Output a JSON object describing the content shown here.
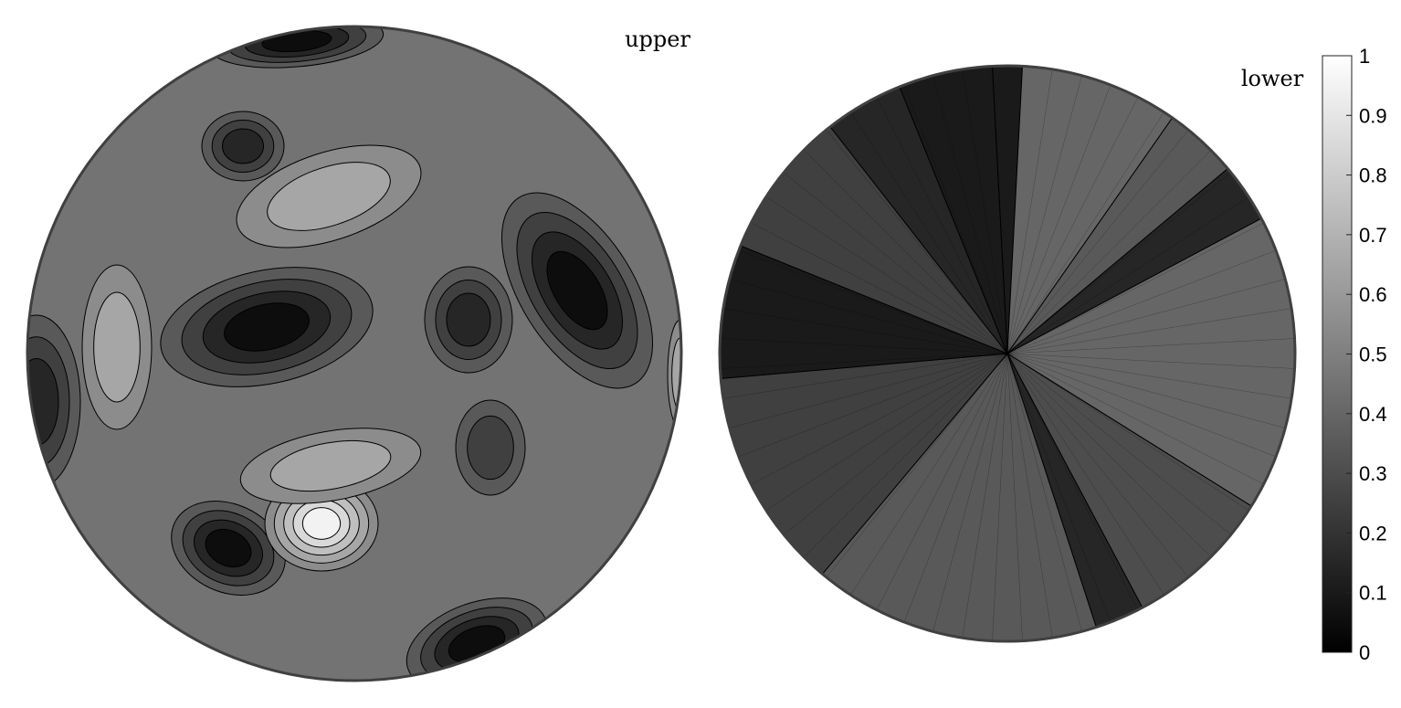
{
  "chart_data": [
    {
      "type": "heatmap",
      "projection": "stereographic (upper hemisphere)",
      "title": "upper",
      "colormap": "gray",
      "clim": [
        0,
        1
      ],
      "contour_levels": [
        0.1,
        0.2,
        0.3,
        0.4,
        0.5,
        0.6,
        0.7,
        0.8,
        0.9
      ],
      "background_value": 0.45,
      "features": [
        {
          "kind": "minimum",
          "value": 0.05
        },
        {
          "kind": "minimum",
          "value": 0.05
        },
        {
          "kind": "minimum",
          "value": 0.05
        },
        {
          "kind": "minimum",
          "value": 0.1
        },
        {
          "kind": "minimum",
          "value": 0.05
        },
        {
          "kind": "minimum",
          "value": 0.1
        },
        {
          "kind": "minimum",
          "value": 0.15
        },
        {
          "kind": "minimum",
          "value": 0.05
        },
        {
          "kind": "minimum",
          "value": 0.25
        },
        {
          "kind": "maximum",
          "value": 0.95
        },
        {
          "kind": "maximum",
          "value": 0.65
        },
        {
          "kind": "maximum",
          "value": 0.65
        },
        {
          "kind": "maximum",
          "value": 0.65
        },
        {
          "kind": "maximum",
          "value": 0.7
        }
      ]
    },
    {
      "type": "heatmap",
      "projection": "stereographic (lower hemisphere)",
      "title": "lower",
      "colormap": "gray",
      "clim": [
        0,
        1
      ],
      "contour_levels": [
        0.1,
        0.2,
        0.3,
        0.4,
        0.5,
        0.6,
        0.7,
        0.8,
        0.9
      ],
      "background_value": 0.4,
      "sectors": [
        {
          "from_deg": -93,
          "to_deg": -87,
          "value": 0.1
        },
        {
          "from_deg": -87,
          "to_deg": -55,
          "value": 0.4
        },
        {
          "from_deg": -55,
          "to_deg": -40,
          "value": 0.35
        },
        {
          "from_deg": -40,
          "to_deg": -28,
          "value": 0.15
        },
        {
          "from_deg": -28,
          "to_deg": 32,
          "value": 0.4
        },
        {
          "from_deg": 32,
          "to_deg": 62,
          "value": 0.3
        },
        {
          "from_deg": 62,
          "to_deg": 72,
          "value": 0.15
        },
        {
          "from_deg": 72,
          "to_deg": 130,
          "value": 0.35
        },
        {
          "from_deg": 130,
          "to_deg": 175,
          "value": 0.25
        },
        {
          "from_deg": 175,
          "to_deg": 202,
          "value": 0.1
        },
        {
          "from_deg": 202,
          "to_deg": 232,
          "value": 0.25
        },
        {
          "from_deg": 232,
          "to_deg": 248,
          "value": 0.15
        },
        {
          "from_deg": 248,
          "to_deg": 267,
          "value": 0.1
        }
      ]
    }
  ],
  "colorbar": {
    "ticks": [
      "0",
      "0.1",
      "0.2",
      "0.3",
      "0.4",
      "0.5",
      "0.6",
      "0.7",
      "0.8",
      "0.9",
      "1"
    ]
  }
}
